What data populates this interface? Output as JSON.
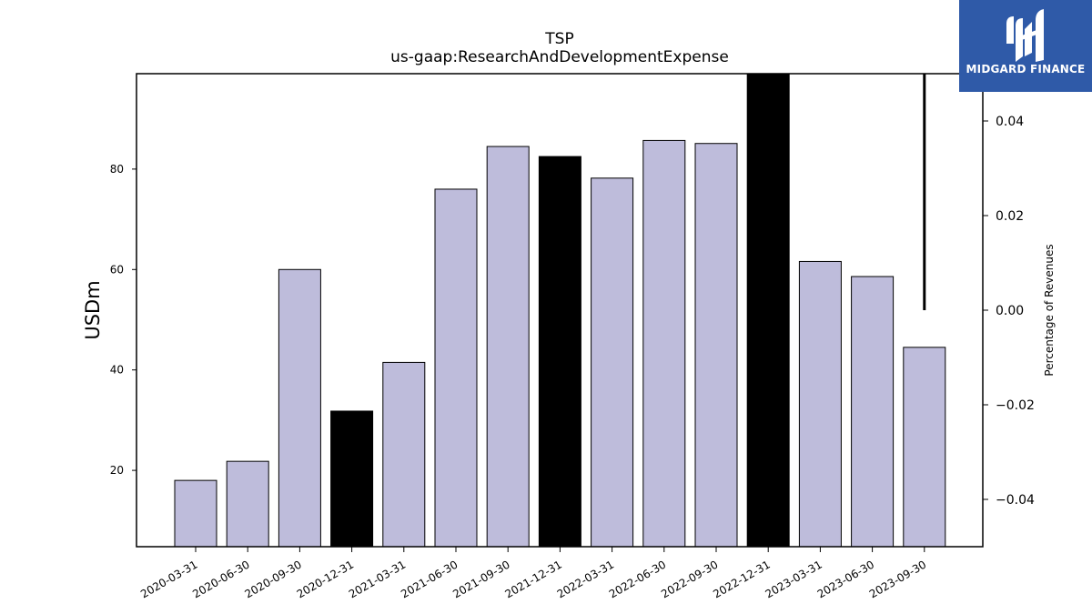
{
  "chart_data": {
    "type": "bar",
    "title": "TSP",
    "subtitle": "us-gaap:ResearchAndDevelopmentExpense",
    "ylabel": "USDm",
    "y2label": "Percentage of Revenues",
    "categories": [
      "2020-03-31",
      "2020-06-30",
      "2020-09-30",
      "2020-12-31",
      "2021-03-31",
      "2021-06-30",
      "2021-09-30",
      "2021-12-31",
      "2022-03-31",
      "2022-06-30",
      "2022-09-30",
      "2022-12-31",
      "2023-03-31",
      "2023-06-30",
      "2023-09-30"
    ],
    "values": [
      18.0,
      21.8,
      60.0,
      31.8,
      41.5,
      76.0,
      84.5,
      82.5,
      78.2,
      85.7,
      85.1,
      99.0,
      61.6,
      58.6,
      44.5
    ],
    "highlighted": [
      false,
      false,
      false,
      true,
      false,
      false,
      false,
      true,
      false,
      false,
      false,
      true,
      false,
      false,
      false
    ],
    "colors": {
      "bar": "#bebcdb",
      "highlight": "#000000",
      "edge": "#000000"
    },
    "ylim": [
      4.8,
      99.0
    ],
    "yticks": [
      20,
      40,
      60,
      80
    ],
    "ytick_labels": [
      "20",
      "40",
      "60",
      "80"
    ],
    "y2lim": [
      -0.05,
      0.05
    ],
    "y2ticks": [
      -0.04,
      -0.02,
      0.0,
      0.02,
      0.04
    ],
    "y2tick_labels": [
      "−0.04",
      "−0.02",
      "0.00",
      "0.02",
      "0.04"
    ],
    "percentage_series": {
      "category": "2023-09-30",
      "range": [
        0.0,
        0.05
      ]
    },
    "grid": false
  },
  "logo": {
    "text": "MIDGARD FINANCE"
  }
}
